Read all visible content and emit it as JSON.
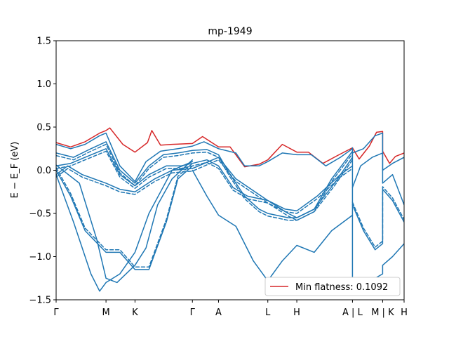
{
  "chart_data": {
    "type": "line",
    "title": "mp-1949",
    "xlabel": "",
    "ylabel": "E − E_F (eV)",
    "ylim": [
      -1.5,
      1.5
    ],
    "xlim": [
      0,
      12.0
    ],
    "yticks": [
      {
        "value": 1.5,
        "label": "1.5"
      },
      {
        "value": 1.0,
        "label": "1.0"
      },
      {
        "value": 0.5,
        "label": "0.5"
      },
      {
        "value": 0.0,
        "label": "0.0"
      },
      {
        "value": -0.5,
        "label": "−0.5"
      },
      {
        "value": -1.0,
        "label": "−1.0"
      },
      {
        "value": -1.5,
        "label": "−1.5"
      }
    ],
    "kpoints": [
      {
        "x": 0.0,
        "label": "Γ"
      },
      {
        "x": 1.72,
        "label": "M"
      },
      {
        "x": 2.72,
        "label": "K"
      },
      {
        "x": 4.7,
        "label": "Γ"
      },
      {
        "x": 5.6,
        "label": "A"
      },
      {
        "x": 7.3,
        "label": "L"
      },
      {
        "x": 8.3,
        "label": "H"
      },
      {
        "x": 10.22,
        "label": "A | L"
      },
      {
        "x": 11.26,
        "label": "M | K"
      },
      {
        "x": 12.0,
        "label": "H"
      }
    ],
    "grid": false,
    "legend": {
      "position": "bottom-right",
      "entries": [
        {
          "name": "Min flatness: 0.1092",
          "color": "#d62728"
        }
      ]
    },
    "colors": {
      "bands": "#1f77b4",
      "highlight": "#d62728"
    },
    "series": [
      {
        "name": "Min flatness: 0.1092",
        "style": "solid",
        "color": "#d62728",
        "x": [
          0.0,
          0.5,
          1.0,
          1.5,
          1.72,
          1.85,
          2.3,
          2.72,
          3.15,
          3.3,
          3.6,
          4.0,
          4.7,
          5.05,
          5.6,
          6.0,
          6.5,
          7.0,
          7.3,
          7.8,
          8.3,
          8.7,
          9.2,
          9.7,
          10.22,
          10.22,
          10.45,
          10.8,
          11.05,
          11.26,
          11.26,
          11.5,
          11.7,
          12.0
        ],
        "y": [
          0.32,
          0.27,
          0.33,
          0.43,
          0.46,
          0.49,
          0.3,
          0.21,
          0.32,
          0.46,
          0.29,
          0.3,
          0.31,
          0.39,
          0.27,
          0.27,
          0.04,
          0.07,
          0.12,
          0.3,
          0.21,
          0.21,
          0.08,
          0.17,
          0.26,
          0.26,
          0.13,
          0.28,
          0.44,
          0.45,
          0.22,
          0.08,
          0.16,
          0.2
        ]
      },
      {
        "style": "solid",
        "x": [
          0.0,
          0.5,
          1.0,
          1.5,
          1.72,
          2.2,
          2.72,
          3.1,
          3.6,
          4.2,
          4.7,
          5.1,
          5.6,
          6.2,
          6.5,
          7.0,
          7.3,
          7.8,
          8.3,
          8.8,
          9.3,
          9.8,
          10.22
        ],
        "y": [
          0.3,
          0.25,
          0.3,
          0.4,
          0.43,
          0.05,
          -0.13,
          0.1,
          0.22,
          0.25,
          0.28,
          0.33,
          0.25,
          0.2,
          0.05,
          0.05,
          0.1,
          0.2,
          0.18,
          0.18,
          0.05,
          0.15,
          0.25
        ]
      },
      {
        "style": "solid",
        "x": [
          0.0,
          0.6,
          1.2,
          1.72,
          2.2,
          2.72,
          3.2,
          3.7,
          4.2,
          4.7,
          5.2,
          5.6,
          6.0,
          6.5,
          7.0,
          7.3,
          8.0,
          8.3,
          8.9,
          9.5,
          10.22
        ],
        "y": [
          0.2,
          0.15,
          0.25,
          0.33,
          0.0,
          -0.15,
          0.05,
          0.18,
          0.2,
          0.23,
          0.24,
          0.18,
          -0.05,
          -0.3,
          -0.45,
          -0.5,
          -0.55,
          -0.55,
          -0.45,
          -0.1,
          0.22
        ]
      },
      {
        "style": "dashed",
        "x": [
          0.0,
          0.6,
          1.2,
          1.72,
          2.2,
          2.72,
          3.2,
          3.7,
          4.2,
          4.7,
          5.2,
          5.6,
          6.0,
          6.5,
          7.0,
          7.3,
          8.0,
          8.3,
          8.9,
          9.5,
          10.22
        ],
        "y": [
          0.17,
          0.12,
          0.22,
          0.3,
          -0.03,
          -0.18,
          0.02,
          0.15,
          0.17,
          0.2,
          0.21,
          0.15,
          -0.08,
          -0.33,
          -0.48,
          -0.53,
          -0.58,
          -0.58,
          -0.48,
          -0.13,
          0.19
        ]
      },
      {
        "style": "solid",
        "x": [
          0.0,
          0.5,
          1.0,
          1.72,
          2.2,
          2.72,
          3.2,
          3.8,
          4.3,
          4.7,
          5.2,
          5.6,
          6.1,
          6.6,
          7.3,
          8.0,
          8.3,
          8.9,
          9.6,
          10.22
        ],
        "y": [
          0.05,
          0.08,
          0.15,
          0.25,
          -0.05,
          -0.18,
          -0.05,
          0.05,
          0.05,
          0.08,
          0.12,
          0.05,
          -0.2,
          -0.3,
          -0.35,
          -0.5,
          -0.55,
          -0.45,
          -0.15,
          0.15
        ]
      },
      {
        "style": "dashed",
        "x": [
          0.0,
          0.5,
          1.0,
          1.72,
          2.2,
          2.72,
          3.2,
          3.8,
          4.3,
          4.7,
          5.2,
          5.6,
          6.1,
          6.6,
          7.3,
          8.0,
          8.3,
          8.9,
          9.6,
          10.22
        ],
        "y": [
          0.02,
          0.05,
          0.12,
          0.22,
          -0.08,
          -0.21,
          -0.08,
          0.02,
          0.02,
          0.05,
          0.09,
          0.02,
          -0.23,
          -0.33,
          -0.38,
          -0.53,
          -0.58,
          -0.48,
          -0.18,
          0.12
        ]
      },
      {
        "style": "solid",
        "x": [
          0.0,
          0.4,
          0.9,
          1.72,
          2.2,
          2.72,
          3.4,
          4.0,
          4.7,
          5.6,
          6.2,
          7.3,
          7.9,
          8.3,
          9.0,
          9.8,
          10.22
        ],
        "y": [
          -0.05,
          0.05,
          -0.05,
          -0.15,
          -0.22,
          -0.25,
          -0.1,
          0.0,
          0.02,
          0.15,
          -0.1,
          -0.35,
          -0.45,
          -0.47,
          -0.3,
          -0.05,
          0.05
        ]
      },
      {
        "style": "dashed",
        "x": [
          0.0,
          0.4,
          0.9,
          1.72,
          2.2,
          2.72,
          3.4,
          4.0,
          4.7,
          5.6,
          6.2,
          7.3,
          7.9,
          8.3,
          9.0,
          9.8,
          10.22
        ],
        "y": [
          -0.08,
          0.02,
          -0.08,
          -0.18,
          -0.25,
          -0.28,
          -0.13,
          -0.03,
          -0.01,
          0.12,
          -0.13,
          -0.38,
          -0.48,
          -0.5,
          -0.33,
          -0.08,
          0.02
        ]
      },
      {
        "style": "solid",
        "x": [
          0.0,
          0.5,
          1.0,
          1.72,
          2.2,
          2.72,
          3.2,
          3.8,
          4.2,
          4.7
        ],
        "y": [
          0.0,
          -0.3,
          -0.7,
          -0.95,
          -0.95,
          -1.15,
          -1.15,
          -0.6,
          -0.1,
          0.05
        ]
      },
      {
        "style": "dashed",
        "x": [
          0.0,
          0.5,
          1.0,
          1.72,
          2.2,
          2.72,
          3.2,
          3.8,
          4.2,
          4.7
        ],
        "y": [
          0.03,
          -0.27,
          -0.67,
          -0.92,
          -0.92,
          -1.12,
          -1.12,
          -0.57,
          -0.07,
          0.08
        ]
      },
      {
        "style": "solid",
        "x": [
          0.0,
          0.6,
          1.2,
          1.5,
          1.72,
          2.2,
          2.72,
          3.2,
          3.6,
          4.0,
          4.7
        ],
        "y": [
          -0.05,
          -0.6,
          -1.2,
          -1.4,
          -1.3,
          -1.2,
          -0.95,
          -0.5,
          -0.25,
          0.0,
          0.1
        ]
      },
      {
        "style": "solid",
        "x": [
          0.0,
          0.8,
          1.4,
          1.72,
          2.1,
          2.72,
          3.1,
          3.5,
          4.0,
          4.7
        ],
        "y": [
          0.06,
          -0.15,
          -0.8,
          -1.25,
          -1.3,
          -1.1,
          -0.9,
          -0.4,
          -0.1,
          0.12
        ]
      },
      {
        "style": "solid",
        "x": [
          4.7,
          5.2,
          5.6,
          6.2,
          6.8,
          7.3,
          7.8,
          8.3,
          8.9,
          9.5,
          10.22
        ],
        "y": [
          0.0,
          -0.3,
          -0.52,
          -0.65,
          -1.05,
          -1.28,
          -1.05,
          -0.87,
          -0.95,
          -0.7,
          -0.52
        ]
      },
      {
        "style": "solid",
        "x": [
          10.22,
          10.22
        ],
        "y": [
          0.26,
          -1.25
        ]
      },
      {
        "style": "solid",
        "x": [
          10.22,
          10.6,
          11.0,
          11.26,
          11.26,
          11.6,
          12.0
        ],
        "y": [
          -0.4,
          -0.7,
          -0.92,
          -0.85,
          -0.22,
          -0.35,
          -0.6
        ]
      },
      {
        "style": "dashed",
        "x": [
          10.22,
          10.6,
          11.0,
          11.26,
          11.26,
          11.6,
          12.0
        ],
        "y": [
          -0.37,
          -0.67,
          -0.89,
          -0.82,
          -0.19,
          -0.32,
          -0.57
        ]
      },
      {
        "style": "solid",
        "x": [
          10.22,
          10.5,
          10.9,
          11.26,
          11.26,
          11.6,
          12.0
        ],
        "y": [
          -0.2,
          0.05,
          0.15,
          0.2,
          -0.15,
          -0.05,
          -0.4
        ]
      },
      {
        "style": "solid",
        "x": [
          10.22,
          10.6,
          11.0,
          11.26,
          11.26,
          11.6,
          12.0
        ],
        "y": [
          -1.25,
          -1.3,
          -1.25,
          -1.2,
          -1.1,
          -1.0,
          -0.85
        ]
      },
      {
        "style": "solid",
        "x": [
          10.22,
          10.6,
          11.0,
          11.26,
          11.26,
          11.6,
          12.0
        ],
        "y": [
          0.2,
          0.25,
          0.4,
          0.43,
          0.0,
          0.08,
          0.15
        ]
      }
    ]
  }
}
